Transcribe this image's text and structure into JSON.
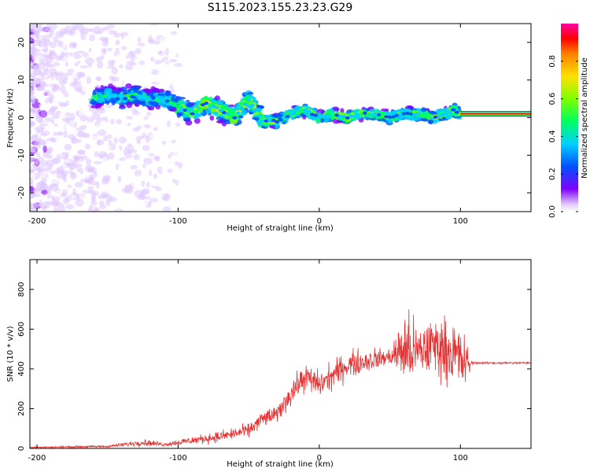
{
  "title": "S115.2023.155.23.23.G29",
  "chart_data": [
    {
      "type": "heatmap",
      "xlabel": "Height of straight line (km)",
      "ylabel": "Frequency (Hz)",
      "xlim": [
        -205,
        150
      ],
      "ylim": [
        -25,
        25
      ],
      "xticks": [
        -200,
        -100,
        0,
        100
      ],
      "yticks": [
        -20,
        -10,
        0,
        10,
        20
      ],
      "colorbar": {
        "label": "Normalized spectral amplitude",
        "range": [
          0.0,
          1.0
        ],
        "ticks": [
          0.0,
          0.2,
          0.4,
          0.6,
          0.8
        ],
        "colors": [
          "#ffffff",
          "#e0c8ff",
          "#8000ff",
          "#0050ff",
          "#00d0ff",
          "#00ff60",
          "#80ff00",
          "#ffe000",
          "#ff8000",
          "#ff0000",
          "#ff00a0"
        ]
      },
      "ridge": {
        "x": [
          -160,
          -150,
          -140,
          -130,
          -120,
          -110,
          -100,
          -90,
          -80,
          -70,
          -60,
          -50,
          -45,
          -40,
          -30,
          -20,
          -10,
          0,
          10,
          20,
          30,
          40,
          50,
          60,
          70,
          80,
          90,
          95,
          100,
          110,
          120,
          130,
          150
        ],
        "y": [
          5,
          6,
          5,
          6,
          5,
          5,
          3,
          1,
          4,
          2,
          0,
          5,
          2,
          -1,
          -1,
          1,
          2,
          0,
          1,
          0,
          1,
          1,
          0,
          1,
          1,
          0,
          1,
          2,
          1,
          1,
          1,
          1,
          1
        ]
      },
      "steady_band_from_x": 100,
      "steady_band_value": 0.9
    },
    {
      "type": "line",
      "xlabel": "Height of straight line (km)",
      "ylabel": "SNR (10 * v/v)",
      "xlim": [
        -205,
        150
      ],
      "ylim": [
        0,
        950
      ],
      "xticks": [
        -200,
        -100,
        0,
        100
      ],
      "yticks": [
        0,
        200,
        400,
        600,
        800
      ],
      "color": "#e83030",
      "envelope": {
        "x": [
          -205,
          -150,
          -125,
          -110,
          -90,
          -70,
          -50,
          -40,
          -30,
          -20,
          -10,
          0,
          20,
          40,
          50,
          55,
          60,
          70,
          80,
          90,
          100,
          105,
          108,
          110,
          150
        ],
        "center": [
          5,
          10,
          30,
          20,
          40,
          60,
          90,
          150,
          170,
          280,
          360,
          320,
          420,
          450,
          460,
          480,
          500,
          480,
          520,
          500,
          450,
          420,
          430,
          430,
          430
        ],
        "spread": [
          5,
          8,
          25,
          15,
          30,
          40,
          50,
          60,
          60,
          90,
          100,
          100,
          100,
          80,
          60,
          150,
          300,
          200,
          220,
          220,
          250,
          150,
          20,
          8,
          8
        ]
      }
    }
  ]
}
